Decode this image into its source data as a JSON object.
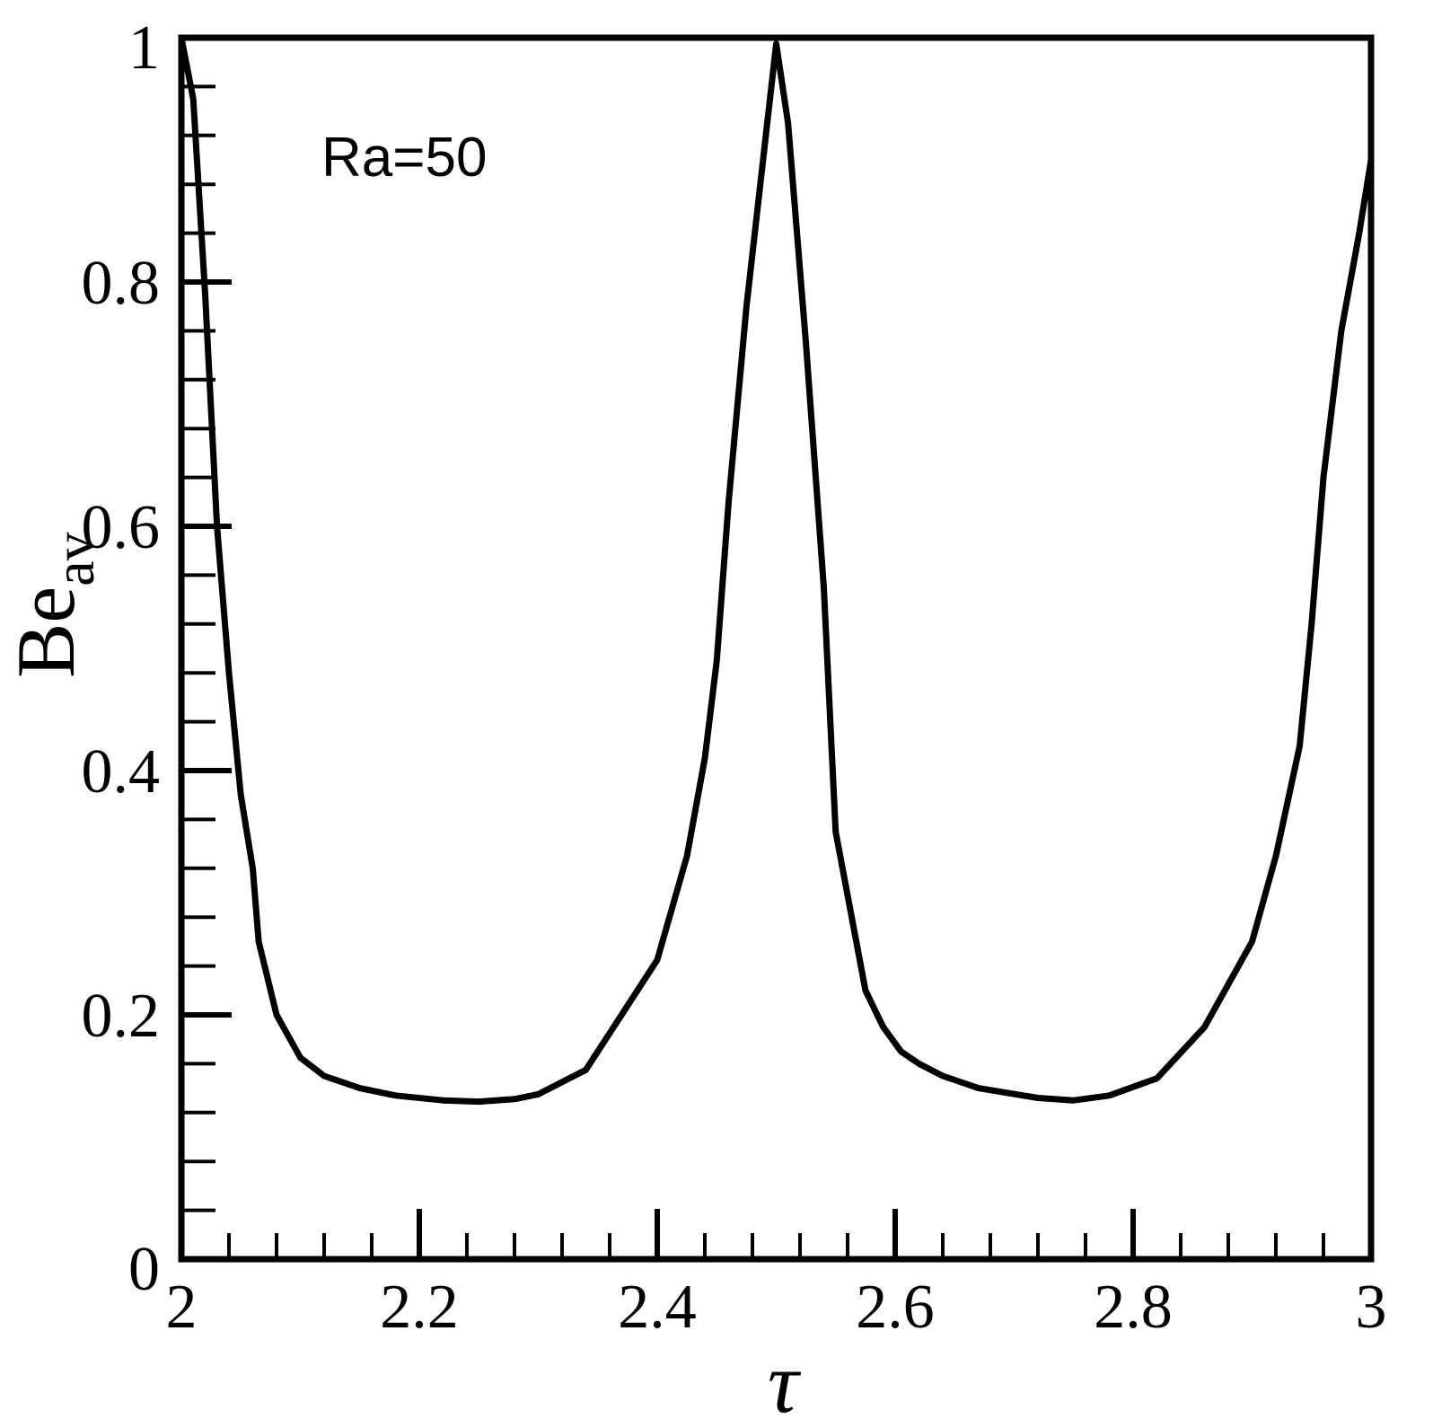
{
  "chart_data": {
    "type": "line",
    "xlabel": "τ",
    "ylabel": "Be",
    "ylabel_subscript": "av",
    "xlim": [
      2,
      3
    ],
    "ylim": [
      0,
      1
    ],
    "x_ticks": [
      2,
      2.2,
      2.4,
      2.6,
      2.8,
      3
    ],
    "x_tick_labels": [
      "2",
      "2.2",
      "2.4",
      "2.6",
      "2.8",
      "3"
    ],
    "y_ticks": [
      0,
      0.2,
      0.4,
      0.6,
      0.8,
      1
    ],
    "y_tick_labels": [
      "0",
      "0.2",
      "0.4",
      "0.6",
      "0.8",
      "1"
    ],
    "x_minor_step": 0.04,
    "y_minor_step": 0.04,
    "grid": false,
    "annotation": "Ra=50",
    "series": [
      {
        "color": "#000000",
        "points": [
          [
            2.0,
            1.0
          ],
          [
            2.01,
            0.95
          ],
          [
            2.02,
            0.79
          ],
          [
            2.03,
            0.6
          ],
          [
            2.04,
            0.48
          ],
          [
            2.05,
            0.38
          ],
          [
            2.06,
            0.32
          ],
          [
            2.065,
            0.26
          ],
          [
            2.08,
            0.2
          ],
          [
            2.1,
            0.165
          ],
          [
            2.12,
            0.15
          ],
          [
            2.15,
            0.14
          ],
          [
            2.18,
            0.134
          ],
          [
            2.22,
            0.13
          ],
          [
            2.25,
            0.129
          ],
          [
            2.28,
            0.131
          ],
          [
            2.3,
            0.135
          ],
          [
            2.34,
            0.155
          ],
          [
            2.37,
            0.2
          ],
          [
            2.4,
            0.245
          ],
          [
            2.425,
            0.33
          ],
          [
            2.44,
            0.41
          ],
          [
            2.45,
            0.49
          ],
          [
            2.46,
            0.62
          ],
          [
            2.475,
            0.78
          ],
          [
            2.5,
            0.995
          ],
          [
            2.51,
            0.93
          ],
          [
            2.525,
            0.75
          ],
          [
            2.54,
            0.55
          ],
          [
            2.55,
            0.35
          ],
          [
            2.575,
            0.22
          ],
          [
            2.59,
            0.19
          ],
          [
            2.605,
            0.17
          ],
          [
            2.62,
            0.16
          ],
          [
            2.64,
            0.15
          ],
          [
            2.67,
            0.14
          ],
          [
            2.72,
            0.132
          ],
          [
            2.75,
            0.13
          ],
          [
            2.78,
            0.134
          ],
          [
            2.82,
            0.148
          ],
          [
            2.86,
            0.19
          ],
          [
            2.9,
            0.26
          ],
          [
            2.92,
            0.33
          ],
          [
            2.94,
            0.42
          ],
          [
            2.95,
            0.52
          ],
          [
            2.96,
            0.64
          ],
          [
            2.975,
            0.76
          ],
          [
            2.99,
            0.84
          ],
          [
            3.0,
            0.9
          ]
        ]
      }
    ]
  }
}
